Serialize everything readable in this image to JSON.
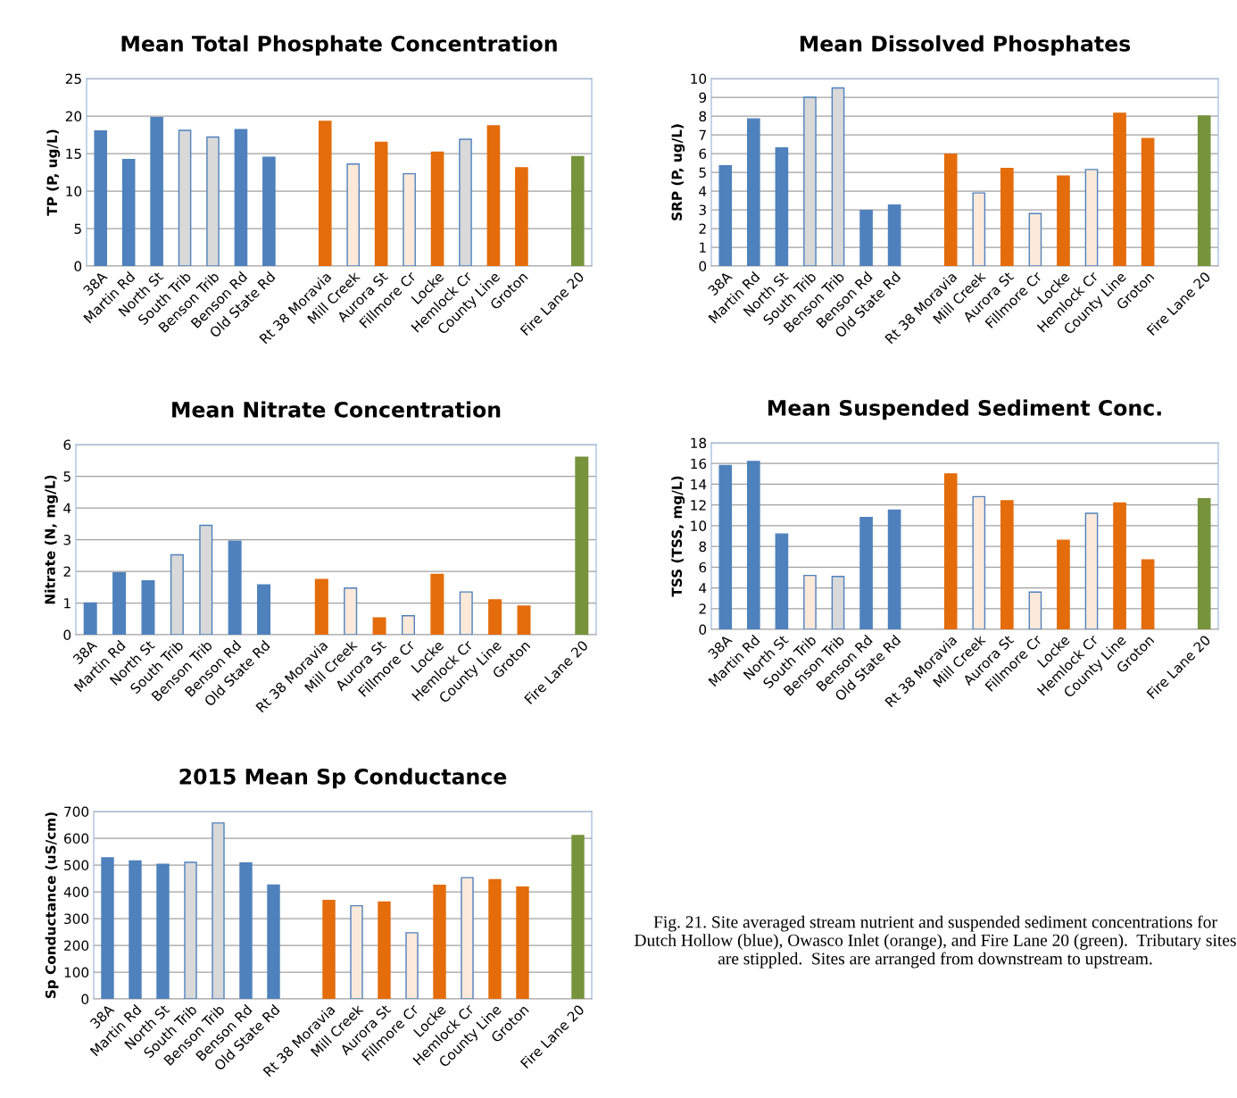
{
  "chart_data": [
    {
      "type": "bar",
      "title": "Mean Total Phosphate Concentration",
      "ylabel": "TP (P, ug/L)",
      "categories": [
        "38A",
        "Martin Rd",
        "North St",
        "South Trib",
        "Benson Trib",
        "Benson Rd",
        "Old State Rd",
        null,
        "Rt 38 Moravia",
        "Mill Creek",
        "Aurora St",
        "Fillmore Cr",
        "Locke",
        "Hemlock Cr",
        "County Line",
        "Groton",
        null,
        "Fire Lane 20"
      ],
      "values": [
        18.0,
        14.2,
        19.8,
        18.1,
        17.2,
        18.2,
        14.5,
        null,
        19.3,
        13.6,
        16.5,
        12.3,
        15.2,
        16.9,
        18.7,
        13.1,
        null,
        14.6
      ],
      "colors": [
        "#4f81bd",
        "#4f81bd",
        "#4f81bd",
        "#d9d9d9",
        "#d9d9d9",
        "#4f81bd",
        "#4f81bd",
        null,
        "#e46c0a",
        "#fde9d9",
        "#e46c0a",
        "#fde9d9",
        "#e46c0a",
        "#d9d9d9",
        "#e46c0a",
        "#e46c0a",
        null,
        "#77933c"
      ],
      "ylim": [
        0,
        25
      ],
      "yticks": [
        0,
        5,
        10,
        15,
        20,
        25
      ],
      "grid": "y"
    },
    {
      "type": "bar",
      "title": "Mean Dissolved Phosphates",
      "ylabel": "SRP (P, ug/L)",
      "categories": [
        "38A",
        "Martin Rd",
        "North St",
        "South Trib",
        "Benson Trib",
        "Benson Rd",
        "Old State Rd",
        null,
        "Rt 38 Moravia",
        "Mill Creek",
        "Aurora St",
        "Fillmore Cr",
        "Locke",
        "Hemlock Cr",
        "County Line",
        "Groton",
        null,
        "Fire Lane 20"
      ],
      "values": [
        5.35,
        7.85,
        6.3,
        9.0,
        9.5,
        2.97,
        3.25,
        null,
        5.97,
        3.9,
        5.2,
        2.8,
        4.8,
        5.15,
        8.15,
        6.8,
        null,
        8.0
      ],
      "colors": [
        "#4f81bd",
        "#4f81bd",
        "#4f81bd",
        "#d9d9d9",
        "#d9d9d9",
        "#4f81bd",
        "#4f81bd",
        null,
        "#e46c0a",
        "#fde9d9",
        "#e46c0a",
        "#fde9d9",
        "#e46c0a",
        "#fde9d9",
        "#e46c0a",
        "#e46c0a",
        null,
        "#77933c"
      ],
      "ylim": [
        0,
        10
      ],
      "yticks": [
        0,
        1,
        2,
        3,
        4,
        5,
        6,
        7,
        8,
        9,
        10
      ],
      "grid": "y"
    },
    {
      "type": "bar",
      "title": "Mean Nitrate Concentration",
      "ylabel": "Nitrate (N, mg/L)",
      "categories": [
        "38A",
        "Martin Rd",
        "North St",
        "South Trib",
        "Benson Trib",
        "Benson Rd",
        "Old State Rd",
        null,
        "Rt 38 Moravia",
        "Mill Creek",
        "Aurora St",
        "Fillmore Cr",
        "Locke",
        "Hemlock Cr",
        "County Line",
        "Groton",
        null,
        "Fire Lane 20"
      ],
      "values": [
        1.0,
        1.95,
        1.7,
        2.52,
        3.45,
        2.95,
        1.57,
        null,
        1.74,
        1.47,
        0.53,
        0.6,
        1.9,
        1.35,
        1.1,
        0.9,
        null,
        5.6
      ],
      "colors": [
        "#4f81bd",
        "#4f81bd",
        "#4f81bd",
        "#d9d9d9",
        "#d9d9d9",
        "#4f81bd",
        "#4f81bd",
        null,
        "#e46c0a",
        "#fde9d9",
        "#e46c0a",
        "#fde9d9",
        "#e46c0a",
        "#fde9d9",
        "#e46c0a",
        "#e46c0a",
        null,
        "#77933c"
      ],
      "ylim": [
        0,
        6
      ],
      "yticks": [
        0,
        1,
        2,
        3,
        4,
        5,
        6
      ],
      "grid": "y"
    },
    {
      "type": "bar",
      "title": "Mean Suspended Sediment Conc.",
      "ylabel": "TSS (TSS, mg/L)",
      "categories": [
        "38A",
        "Martin Rd",
        "North St",
        "South Trib",
        "Benson Trib",
        "Benson Rd",
        "Old State Rd",
        null,
        "Rt 38 Moravia",
        "Mill Creek",
        "Aurora St",
        "Fillmore Cr",
        "Locke",
        "Hemlock Cr",
        "County Line",
        "Groton",
        null,
        "Fire Lane 20"
      ],
      "values": [
        15.8,
        16.2,
        9.2,
        5.2,
        5.1,
        10.8,
        11.5,
        null,
        15.0,
        12.8,
        12.4,
        3.6,
        8.6,
        11.2,
        12.2,
        6.7,
        null,
        12.6
      ],
      "colors": [
        "#4f81bd",
        "#4f81bd",
        "#4f81bd",
        "#fde9d9",
        "#d9d9d9",
        "#4f81bd",
        "#4f81bd",
        null,
        "#e46c0a",
        "#fde9d9",
        "#e46c0a",
        "#fde9d9",
        "#e46c0a",
        "#fde9d9",
        "#e46c0a",
        "#e46c0a",
        null,
        "#77933c"
      ],
      "ylim": [
        0,
        18
      ],
      "yticks": [
        0,
        2,
        4,
        6,
        8,
        10,
        12,
        14,
        16,
        18
      ],
      "grid": "y"
    },
    {
      "type": "bar",
      "title": "2015 Mean Sp Conductance",
      "ylabel": "Sp Conductance (uS/cm)",
      "categories": [
        "38A",
        "Martin Rd",
        "North St",
        "South Trib",
        "Benson Trib",
        "Benson Rd",
        "Old State Rd",
        null,
        "Rt 38 Moravia",
        "Mill Creek",
        "Aurora St",
        "Fillmore Cr",
        "Locke",
        "Hemlock Cr",
        "County Line",
        "Groton",
        null,
        "Fire Lane 20"
      ],
      "values": [
        527,
        515,
        503,
        510,
        657,
        508,
        425,
        null,
        368,
        348,
        362,
        247,
        424,
        453,
        445,
        418,
        null,
        610
      ],
      "colors": [
        "#4f81bd",
        "#4f81bd",
        "#4f81bd",
        "#d9d9d9",
        "#d9d9d9",
        "#4f81bd",
        "#4f81bd",
        null,
        "#e46c0a",
        "#fde9d9",
        "#e46c0a",
        "#fde9d9",
        "#e46c0a",
        "#fde9d9",
        "#e46c0a",
        "#e46c0a",
        null,
        "#77933c"
      ],
      "ylim": [
        0,
        700
      ],
      "yticks": [
        0,
        100,
        200,
        300,
        400,
        500,
        600,
        700
      ],
      "grid": "y",
      "annotations": [
        "Fig. 21. Site averaged stream nutrient and suspended sediment concentrations for Dutch Hollow (blue), Owasco Inlet (orange), and Fire Lane 20 (green).  Tributary sites are stippled.  Sites are arranged from downstream to upstream."
      ]
    }
  ]
}
